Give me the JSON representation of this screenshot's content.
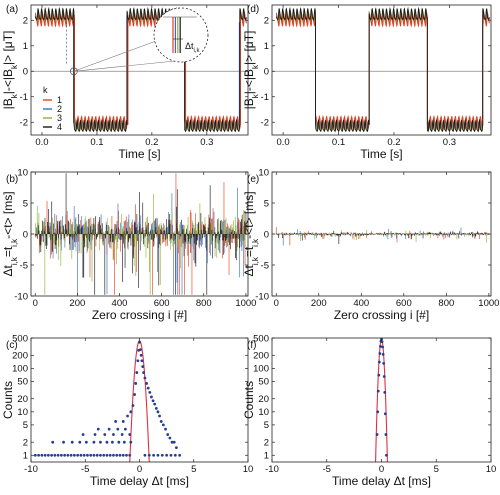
{
  "colors": {
    "k1": "#e8401c",
    "k2": "#3d6bbf",
    "k3": "#8fb03a",
    "k4": "#1a1a1a",
    "fit": "#e03040",
    "points": "#24408f",
    "zero_line": "#888888",
    "frame": "#222222"
  },
  "chart_data": [
    {
      "id": "a",
      "type": "line",
      "panel_label": "(a)",
      "xlabel": "Time [s]",
      "ylabel": "|B_k|-<|B_k|> [μT]",
      "xlim": [
        -0.02,
        0.375
      ],
      "ylim": [
        -2.5,
        2.6
      ],
      "xticks": [
        0.0,
        0.1,
        0.2,
        0.3
      ],
      "xtick_labels": [
        "0.0",
        "0.1",
        "0.2",
        "0.3"
      ],
      "yticks": [
        -2,
        -1,
        0,
        1,
        2
      ],
      "ytick_labels": [
        "-2",
        "-1",
        "0",
        "1",
        "2"
      ],
      "grid": false,
      "legend": {
        "title": "k",
        "placement": "center-left",
        "entries": [
          "1",
          "2",
          "3",
          "4"
        ]
      },
      "waveform": {
        "shape": "square",
        "amplitude": 2.1,
        "ripple_amplitude": 0.2,
        "transitions": [
          0.058,
          0.155,
          0.26,
          0.36
        ],
        "start_level": 1,
        "x_start": -0.012,
        "x_end": 0.372
      },
      "series_offsets_ms": [
        1.2,
        -0.8,
        0.6,
        -0.3
      ],
      "inset": {
        "label": "Δt",
        "label_sub": "i,k",
        "zoom_point": [
          0.058,
          0
        ]
      }
    },
    {
      "id": "b",
      "type": "bar",
      "panel_label": "(b)",
      "xlabel": "Zero crossing i [#]",
      "ylabel": "Δt_{i,k}=t_{i,k}-<t> [ms]",
      "xlim": [
        -20,
        1010
      ],
      "ylim": [
        -10,
        10
      ],
      "xticks": [
        0,
        200,
        400,
        600,
        800,
        1000
      ],
      "xtick_labels": [
        "0",
        "200",
        "400",
        "600",
        "800",
        "1000"
      ],
      "yticks": [
        -10,
        -5,
        0,
        5,
        10
      ],
      "ytick_labels": [
        "-10",
        "-5",
        "0",
        "5",
        "10"
      ],
      "grid": false,
      "spread_ms": 3.0,
      "n_crossings": 1000
    },
    {
      "id": "c",
      "type": "scatter",
      "panel_label": "(c)",
      "xlabel": "Time delay Δt [ms]",
      "ylabel": "Counts",
      "xlim": [
        -10,
        10
      ],
      "ylim": [
        0.7,
        500
      ],
      "yscale": "log",
      "xticks": [
        -10,
        -5,
        0,
        5,
        10
      ],
      "xtick_labels": [
        "-10",
        "-5",
        "0",
        "5",
        "10"
      ],
      "yticks": [
        1,
        2,
        5,
        10,
        20,
        50,
        100,
        200,
        500
      ],
      "ytick_labels": [
        "1",
        "2",
        "5",
        "10",
        "20",
        "50",
        "100",
        "200",
        "500"
      ],
      "grid": false,
      "fit": {
        "type": "gaussian",
        "peak": 430,
        "center": 0.0,
        "sigma": 0.25
      },
      "points": [
        [
          -9.6,
          1
        ],
        [
          -9.3,
          1
        ],
        [
          -9.0,
          1
        ],
        [
          -8.7,
          1
        ],
        [
          -8.4,
          1
        ],
        [
          -8.1,
          1
        ],
        [
          -7.8,
          1
        ],
        [
          -7.5,
          1
        ],
        [
          -7.2,
          1
        ],
        [
          -6.9,
          1
        ],
        [
          -6.6,
          1
        ],
        [
          -6.3,
          1
        ],
        [
          -6.0,
          1
        ],
        [
          -5.7,
          1
        ],
        [
          -5.4,
          1
        ],
        [
          -5.1,
          1
        ],
        [
          -4.8,
          1
        ],
        [
          -4.5,
          1
        ],
        [
          -4.2,
          1
        ],
        [
          -3.9,
          1
        ],
        [
          -3.6,
          1
        ],
        [
          -3.3,
          1
        ],
        [
          -3.0,
          1
        ],
        [
          -2.7,
          1
        ],
        [
          -2.4,
          1
        ],
        [
          -2.1,
          1
        ],
        [
          -1.8,
          1
        ],
        [
          -1.5,
          1
        ],
        [
          -1.2,
          1
        ],
        [
          -0.9,
          1
        ],
        [
          -8.0,
          2
        ],
        [
          -7.0,
          2
        ],
        [
          -6.2,
          2
        ],
        [
          -5.5,
          2
        ],
        [
          -4.9,
          2
        ],
        [
          -4.2,
          2
        ],
        [
          -3.6,
          2
        ],
        [
          -3.0,
          2
        ],
        [
          -2.5,
          2
        ],
        [
          -1.9,
          2
        ],
        [
          -1.4,
          2
        ],
        [
          -0.8,
          2
        ],
        [
          -5.2,
          3
        ],
        [
          -4.1,
          3
        ],
        [
          -3.2,
          3
        ],
        [
          -2.4,
          3
        ],
        [
          -1.6,
          3
        ],
        [
          -0.9,
          3
        ],
        [
          -3.8,
          4
        ],
        [
          -2.8,
          4
        ],
        [
          -2.0,
          4
        ],
        [
          -1.3,
          4
        ],
        [
          -2.2,
          6
        ],
        [
          -1.5,
          6
        ],
        [
          -1.1,
          8
        ],
        [
          -0.8,
          10
        ],
        [
          -0.6,
          14
        ],
        [
          -0.45,
          25
        ],
        [
          -0.35,
          45
        ],
        [
          -0.25,
          80
        ],
        [
          -0.15,
          150
        ],
        [
          -0.08,
          260
        ],
        [
          0.0,
          400
        ],
        [
          0.08,
          270
        ],
        [
          0.15,
          200
        ],
        [
          0.22,
          150
        ],
        [
          0.3,
          110
        ],
        [
          0.38,
          80
        ],
        [
          0.5,
          60
        ],
        [
          0.65,
          45
        ],
        [
          0.8,
          35
        ],
        [
          0.95,
          28
        ],
        [
          1.1,
          22
        ],
        [
          1.25,
          18
        ],
        [
          1.4,
          15
        ],
        [
          1.55,
          12
        ],
        [
          1.7,
          10
        ],
        [
          1.85,
          8
        ],
        [
          2.0,
          6
        ],
        [
          2.2,
          5
        ],
        [
          2.4,
          4
        ],
        [
          2.6,
          3
        ],
        [
          2.8,
          2.5
        ],
        [
          3.0,
          2
        ],
        [
          3.2,
          2
        ],
        [
          3.4,
          1.5
        ],
        [
          0.5,
          1
        ],
        [
          0.9,
          1
        ],
        [
          1.3,
          1
        ],
        [
          1.7,
          1
        ],
        [
          2.1,
          1
        ],
        [
          2.5,
          1
        ],
        [
          2.9,
          1
        ],
        [
          3.3,
          1
        ],
        [
          3.7,
          1
        ]
      ]
    },
    {
      "id": "d",
      "type": "line",
      "panel_label": "(d)",
      "xlabel": "Time [s]",
      "ylabel": "|B_k|-<|B_k|> [μT]",
      "xlim": [
        -0.02,
        0.375
      ],
      "ylim": [
        -2.5,
        2.6
      ],
      "xticks": [
        0.0,
        0.1,
        0.2,
        0.3
      ],
      "xtick_labels": [
        "0.0",
        "0.1",
        "0.2",
        "0.3"
      ],
      "yticks": [
        -2,
        -1,
        0,
        1,
        2
      ],
      "ytick_labels": [
        "-2",
        "-1",
        "0",
        "1",
        "2"
      ],
      "grid": false,
      "waveform": {
        "shape": "square",
        "amplitude": 2.1,
        "ripple_amplitude": 0.2,
        "transitions": [
          0.058,
          0.155,
          0.26,
          0.36
        ],
        "start_level": 1,
        "x_start": -0.012,
        "x_end": 0.372
      },
      "series_offsets_ms": [
        0,
        0,
        0,
        0
      ]
    },
    {
      "id": "e",
      "type": "bar",
      "panel_label": "(e)",
      "xlabel": "Zero crossing i [#]",
      "ylabel": "Δt_{i,k}=t_{i,k}-<t> [ms]",
      "xlim": [
        -20,
        1010
      ],
      "ylim": [
        -10,
        10
      ],
      "xticks": [
        0,
        200,
        400,
        600,
        800,
        1000
      ],
      "xtick_labels": [
        "0",
        "200",
        "400",
        "600",
        "800",
        "1000"
      ],
      "yticks": [
        -10,
        -5,
        0,
        5,
        10
      ],
      "ytick_labels": [
        "-10",
        "-5",
        "0",
        "5",
        "10"
      ],
      "grid": false,
      "spread_ms": 0.25,
      "n_crossings": 1000
    },
    {
      "id": "f",
      "type": "scatter",
      "panel_label": "(f)",
      "xlabel": "Time delay Δt [ms]",
      "ylabel": "Counts",
      "xlim": [
        -10,
        10
      ],
      "ylim": [
        0.7,
        500
      ],
      "yscale": "log",
      "xticks": [
        -10,
        -5,
        0,
        5,
        10
      ],
      "xtick_labels": [
        "-10",
        "-5",
        "0",
        "5",
        "10"
      ],
      "yticks": [
        1,
        2,
        5,
        10,
        20,
        50,
        100,
        200,
        500
      ],
      "ytick_labels": [
        "1",
        "2",
        "5",
        "10",
        "20",
        "50",
        "100",
        "200",
        "500"
      ],
      "grid": false,
      "fit": {
        "type": "gaussian",
        "peak": 470,
        "center": 0.0,
        "sigma": 0.15
      },
      "points": [
        [
          -0.4,
          3
        ],
        [
          -0.35,
          10
        ],
        [
          -0.3,
          30
        ],
        [
          -0.25,
          70
        ],
        [
          -0.2,
          140
        ],
        [
          -0.15,
          220
        ],
        [
          -0.1,
          320
        ],
        [
          -0.05,
          420
        ],
        [
          0.0,
          470
        ],
        [
          0.05,
          410
        ],
        [
          0.1,
          310
        ],
        [
          0.15,
          210
        ],
        [
          0.2,
          130
        ],
        [
          0.25,
          65
        ],
        [
          0.3,
          28
        ],
        [
          0.35,
          9
        ],
        [
          0.4,
          3
        ],
        [
          0.45,
          1
        ]
      ]
    }
  ]
}
